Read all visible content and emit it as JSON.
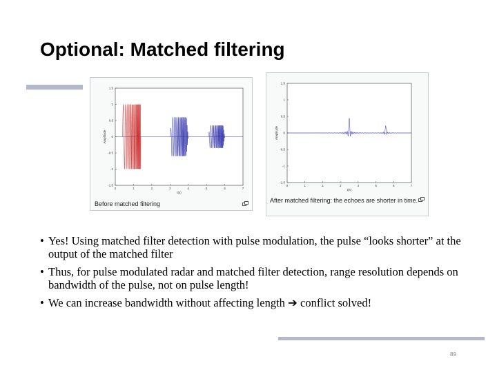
{
  "slide": {
    "title": "Optional: Matched filtering",
    "page_number": "89",
    "accent_color": "#b3b8cc"
  },
  "figures": [
    {
      "caption": "Before matched filtering",
      "x_tick_labels": [
        "0",
        "1",
        "2",
        "3",
        "4",
        "5",
        "6",
        "7"
      ],
      "y_tick_labels": [
        "1.5",
        "1",
        "0.5",
        "0",
        "-0.5",
        "-1",
        "-1.5"
      ],
      "xlabel": "t(s)",
      "ylabel": "Amplitude",
      "icon": "enlarge-icon"
    },
    {
      "caption": "After matched filtering: the echoes are shorter in time.",
      "x_tick_labels": [
        "0",
        "1",
        "2",
        "3",
        "4",
        "5",
        "6",
        "7"
      ],
      "y_tick_labels": [
        "1.5",
        "1",
        "0.5",
        "0",
        "-0.5",
        "-1",
        "-1.5"
      ],
      "xlabel": "t(s)",
      "ylabel": "Amplitude",
      "icon": "enlarge-icon"
    }
  ],
  "bullets": [
    "Yes! Using matched filter detection with pulse modulation, the pulse “looks shorter” at the output of the matched filter",
    "Thus, for pulse modulated radar and matched filter detection, range resolution depends on bandwidth of the pulse, not on pulse length!",
    "We can increase bandwidth without affecting length ➔ conflict solved!"
  ],
  "colors": {
    "transmit_pulse": "#cc3333",
    "echo_pulse": "#3333aa",
    "axis": "#333333"
  }
}
